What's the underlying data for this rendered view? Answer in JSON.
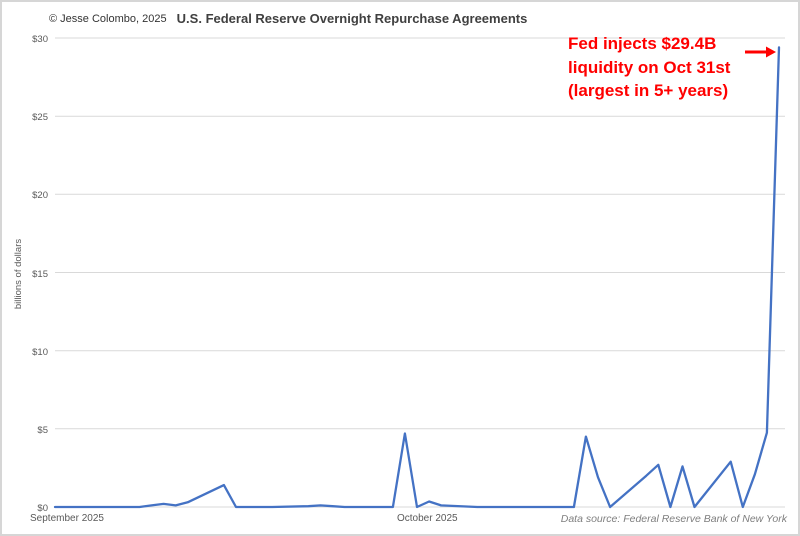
{
  "header": {
    "copyright": "© Jesse Colombo, 2025",
    "title": "U.S. Federal Reserve Overnight Repurchase Agreements"
  },
  "annotation": {
    "lines": [
      "Fed injects $29.4B",
      "liquidity on Oct 31st",
      "(largest in 5+ years)"
    ],
    "color": "#ff0000",
    "arrow_icon": "right-arrow"
  },
  "footer": {
    "data_source": "Data source: Federal Reserve Bank of New York"
  },
  "chart_data": {
    "type": "line",
    "title": "U.S. Federal Reserve Overnight Repurchase Agreements",
    "xlabel": "",
    "ylabel": "billions of dollars",
    "ylim": [
      0,
      30
    ],
    "ytick_values": [
      0,
      5,
      10,
      15,
      20,
      25,
      30
    ],
    "ytick_labels": [
      "$0",
      "$5",
      "$10",
      "$15",
      "$20",
      "$25",
      "$30"
    ],
    "xtick_labels": [
      "September 2025",
      "October 2025"
    ],
    "x_range_dates": [
      "2025-09-01",
      "2025-10-31"
    ],
    "grid": true,
    "legend": "none",
    "line_color": "#4472C4",
    "gridline_color": "#d9d9d9",
    "series": [
      {
        "name": "Overnight repurchase agreements (billions of dollars)",
        "points": [
          {
            "date": "2025-09-01",
            "value": 0
          },
          {
            "date": "2025-09-02",
            "value": 0
          },
          {
            "date": "2025-09-03",
            "value": 0
          },
          {
            "date": "2025-09-04",
            "value": 0
          },
          {
            "date": "2025-09-05",
            "value": 0
          },
          {
            "date": "2025-09-08",
            "value": 0
          },
          {
            "date": "2025-09-09",
            "value": 0.1
          },
          {
            "date": "2025-09-10",
            "value": 0.2
          },
          {
            "date": "2025-09-11",
            "value": 0.1
          },
          {
            "date": "2025-09-12",
            "value": 0.3
          },
          {
            "date": "2025-09-15",
            "value": 1.4
          },
          {
            "date": "2025-09-16",
            "value": 0
          },
          {
            "date": "2025-09-17",
            "value": 0
          },
          {
            "date": "2025-09-18",
            "value": 0
          },
          {
            "date": "2025-09-19",
            "value": 0
          },
          {
            "date": "2025-09-22",
            "value": 0.05
          },
          {
            "date": "2025-09-23",
            "value": 0.1
          },
          {
            "date": "2025-09-24",
            "value": 0.05
          },
          {
            "date": "2025-09-25",
            "value": 0
          },
          {
            "date": "2025-09-26",
            "value": 0
          },
          {
            "date": "2025-09-29",
            "value": 0
          },
          {
            "date": "2025-09-30",
            "value": 4.7
          },
          {
            "date": "2025-10-01",
            "value": 0
          },
          {
            "date": "2025-10-02",
            "value": 0.35
          },
          {
            "date": "2025-10-03",
            "value": 0.1
          },
          {
            "date": "2025-10-06",
            "value": 0
          },
          {
            "date": "2025-10-07",
            "value": 0
          },
          {
            "date": "2025-10-08",
            "value": 0
          },
          {
            "date": "2025-10-09",
            "value": 0
          },
          {
            "date": "2025-10-10",
            "value": 0
          },
          {
            "date": "2025-10-13",
            "value": 0
          },
          {
            "date": "2025-10-14",
            "value": 0
          },
          {
            "date": "2025-10-15",
            "value": 4.5
          },
          {
            "date": "2025-10-16",
            "value": 1.9
          },
          {
            "date": "2025-10-17",
            "value": 0
          },
          {
            "date": "2025-10-20",
            "value": 2.0
          },
          {
            "date": "2025-10-21",
            "value": 2.7
          },
          {
            "date": "2025-10-22",
            "value": 0
          },
          {
            "date": "2025-10-23",
            "value": 2.6
          },
          {
            "date": "2025-10-24",
            "value": 0
          },
          {
            "date": "2025-10-27",
            "value": 2.9
          },
          {
            "date": "2025-10-28",
            "value": 0
          },
          {
            "date": "2025-10-29",
            "value": 2.1
          },
          {
            "date": "2025-10-30",
            "value": 4.75
          },
          {
            "date": "2025-10-31",
            "value": 29.4
          }
        ]
      }
    ]
  }
}
